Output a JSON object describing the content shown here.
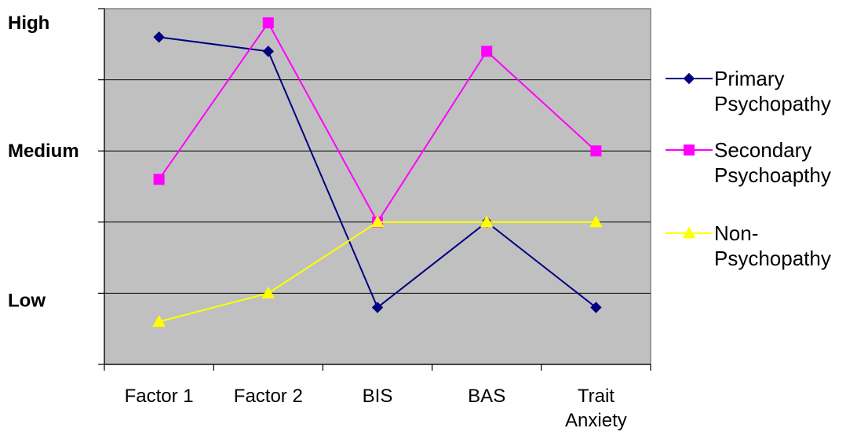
{
  "chart_data": {
    "type": "line",
    "categories": [
      [
        "Factor 1"
      ],
      [
        "Factor 2"
      ],
      [
        "BIS"
      ],
      [
        "BAS"
      ],
      [
        "Trait",
        "Anxiety"
      ]
    ],
    "y_level_labels": [
      {
        "label": "High",
        "value": 4.8
      },
      {
        "label": "Medium",
        "value": 3.0
      },
      {
        "label": "Low",
        "value": 0.9
      }
    ],
    "ylim": [
      0,
      5
    ],
    "y_gridlines": [
      1,
      2,
      3,
      4
    ],
    "series": [
      {
        "name": [
          "Primary",
          "Psychopathy"
        ],
        "color": "#000080",
        "marker": "diamond",
        "values": [
          4.6,
          4.4,
          0.8,
          2.0,
          0.8
        ]
      },
      {
        "name": [
          "Secondary",
          "Psychoapthy"
        ],
        "color": "#ff00ff",
        "marker": "square",
        "values": [
          2.6,
          4.8,
          2.0,
          4.4,
          3.0
        ]
      },
      {
        "name": [
          "Non-",
          "Psychopathy"
        ],
        "color": "#ffff00",
        "marker": "triangle",
        "values": [
          0.6,
          1.0,
          2.0,
          2.0,
          2.0
        ]
      }
    ],
    "plot_background": "#c0c0c0",
    "grid": true,
    "legend_position": "right"
  }
}
